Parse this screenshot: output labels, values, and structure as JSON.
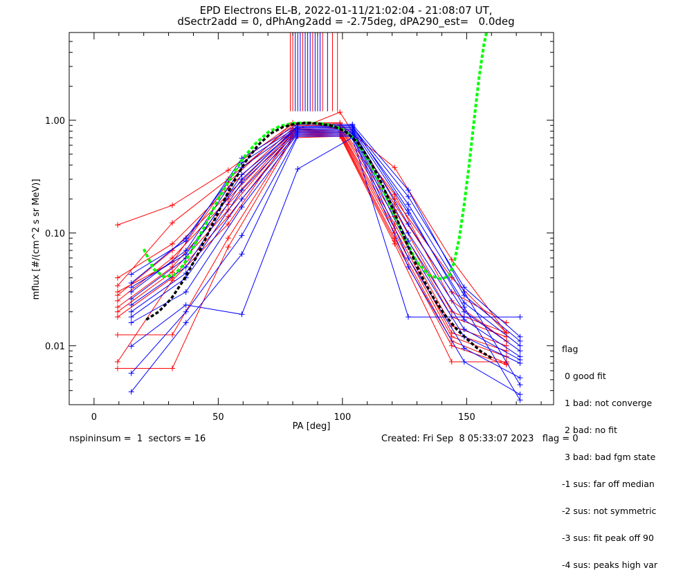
{
  "chart_data": {
    "type": "line",
    "title": "EPD Electrons EL-B, 2022-01-11/21:02:04 - 21:08:07 UT,",
    "subtitle": "dSectr2add = 0, dPhAng2add = -2.75deg, dPA290_est=   0.0deg",
    "xlabel": "PA [deg]",
    "ylabel": "mflux [#/(cm^2 s sr MeV)]",
    "xlim": [
      -10,
      185
    ],
    "ylim": [
      0.003,
      6.0
    ],
    "yscale": "log",
    "x_ticks": [
      0,
      50,
      100,
      150
    ],
    "x_tick_labels": [
      "0",
      "50",
      "100",
      "150"
    ],
    "y_ticks": [
      0.01,
      0.1,
      1.0
    ],
    "y_tick_labels": [
      "0.01",
      "0.10",
      "1.00"
    ],
    "grid": false,
    "colors": {
      "red": "#ff0000",
      "blue": "#0000ff",
      "green_fit": "#00ff00",
      "black_fit": "#000000"
    },
    "series": [
      {
        "color": "red",
        "x": [
          9.5,
          31.5,
          54.0,
          80.0,
          99.0,
          121.0,
          144.0,
          166.0
        ],
        "y": [
          0.118,
          0.176,
          0.36,
          0.93,
          0.93,
          0.38,
          0.058,
          0.013
        ]
      },
      {
        "color": "red",
        "x": [
          9.5,
          31.5,
          54.0,
          80.0,
          99.0,
          121.0,
          144.0,
          166.0
        ],
        "y": [
          0.034,
          0.123,
          0.3,
          0.9,
          0.9,
          0.18,
          0.03,
          0.016
        ]
      },
      {
        "color": "red",
        "x": [
          9.5,
          31.5,
          54.0,
          80.0,
          99.0,
          121.0,
          144.0,
          166.0
        ],
        "y": [
          0.04,
          0.08,
          0.25,
          0.85,
          0.87,
          0.16,
          0.02,
          0.013
        ]
      },
      {
        "color": "red",
        "x": [
          9.5,
          31.5,
          54.0,
          80.0,
          99.0,
          121.0,
          144.0,
          166.0
        ],
        "y": [
          0.028,
          0.07,
          0.22,
          0.82,
          0.85,
          0.14,
          0.018,
          0.012
        ]
      },
      {
        "color": "red",
        "x": [
          9.5,
          31.5,
          54.0,
          80.0,
          99.0,
          121.0,
          144.0,
          166.0
        ],
        "y": [
          0.025,
          0.06,
          0.2,
          0.8,
          0.82,
          0.12,
          0.015,
          0.01
        ]
      },
      {
        "color": "red",
        "x": [
          9.5,
          31.5,
          54.0,
          80.0,
          99.0,
          121.0,
          144.0,
          166.0
        ],
        "y": [
          0.022,
          0.05,
          0.18,
          0.78,
          0.8,
          0.11,
          0.013,
          0.009
        ]
      },
      {
        "color": "red",
        "x": [
          9.5,
          31.5,
          54.0,
          80.0,
          99.0,
          121.0,
          144.0,
          166.0
        ],
        "y": [
          0.02,
          0.045,
          0.16,
          0.76,
          0.78,
          0.1,
          0.012,
          0.008
        ]
      },
      {
        "color": "red",
        "x": [
          9.5,
          31.5,
          54.0,
          80.0,
          99.0,
          121.0,
          144.0,
          166.0
        ],
        "y": [
          0.018,
          0.04,
          0.14,
          0.74,
          0.76,
          0.09,
          0.011,
          0.007
        ]
      },
      {
        "color": "red",
        "x": [
          9.5,
          31.5,
          54.0,
          80.0,
          99.0,
          121.0,
          144.0,
          166.0
        ],
        "y": [
          0.0125,
          0.0125,
          0.09,
          0.72,
          0.74,
          0.085,
          0.01,
          0.0068
        ]
      },
      {
        "color": "red",
        "x": [
          9.5,
          31.5,
          54.0,
          80.0,
          99.0,
          121.0,
          144.0,
          166.0
        ],
        "y": [
          0.0063,
          0.0063,
          0.075,
          0.7,
          0.72,
          0.08,
          0.0072,
          0.0072
        ]
      },
      {
        "color": "red",
        "x": [
          9.5,
          31.5,
          54.0,
          80.0,
          99.0,
          121.0,
          144.0,
          166.0
        ],
        "y": [
          0.0072,
          0.038,
          0.12,
          0.8,
          1.18,
          0.2,
          0.04,
          0.013
        ]
      },
      {
        "color": "red",
        "x": [
          9.5,
          31.5,
          54.0,
          80.0,
          99.0,
          121.0,
          144.0,
          166.0
        ],
        "y": [
          0.03,
          0.055,
          0.28,
          0.95,
          0.95,
          0.22,
          0.025,
          0.011
        ]
      },
      {
        "color": "blue",
        "x": [
          15.0,
          37.0,
          59.5,
          82.0,
          104.0,
          126.5,
          149.0,
          171.5
        ],
        "y": [
          0.036,
          0.09,
          0.42,
          0.88,
          0.88,
          0.21,
          0.033,
          0.012
        ]
      },
      {
        "color": "blue",
        "x": [
          15.0,
          37.0,
          59.5,
          82.0,
          104.0,
          126.5,
          149.0,
          171.5
        ],
        "y": [
          0.03,
          0.07,
          0.38,
          0.86,
          0.86,
          0.18,
          0.028,
          0.011
        ]
      },
      {
        "color": "blue",
        "x": [
          15.0,
          37.0,
          59.5,
          82.0,
          104.0,
          126.5,
          149.0,
          171.5
        ],
        "y": [
          0.026,
          0.06,
          0.33,
          0.84,
          0.84,
          0.15,
          0.024,
          0.01
        ]
      },
      {
        "color": "blue",
        "x": [
          15.0,
          37.0,
          59.5,
          82.0,
          104.0,
          126.5,
          149.0,
          171.5
        ],
        "y": [
          0.023,
          0.05,
          0.28,
          0.82,
          0.82,
          0.12,
          0.02,
          0.009
        ]
      },
      {
        "color": "blue",
        "x": [
          15.0,
          37.0,
          59.5,
          82.0,
          104.0,
          126.5,
          149.0,
          171.5
        ],
        "y": [
          0.02,
          0.044,
          0.24,
          0.8,
          0.8,
          0.1,
          0.017,
          0.008
        ]
      },
      {
        "color": "blue",
        "x": [
          15.0,
          37.0,
          59.5,
          82.0,
          104.0,
          126.5,
          149.0,
          171.5
        ],
        "y": [
          0.018,
          0.04,
          0.2,
          0.78,
          0.78,
          0.085,
          0.014,
          0.0075
        ]
      },
      {
        "color": "blue",
        "x": [
          15.0,
          37.0,
          59.5,
          82.0,
          104.0,
          126.5,
          149.0,
          171.5
        ],
        "y": [
          0.016,
          0.03,
          0.17,
          0.76,
          0.76,
          0.075,
          0.012,
          0.007
        ]
      },
      {
        "color": "blue",
        "x": [
          15.0,
          37.0,
          59.5,
          82.0,
          104.0,
          126.5,
          149.0,
          171.5
        ],
        "y": [
          0.0057,
          0.02,
          0.095,
          0.74,
          0.74,
          0.06,
          0.0095,
          0.0052
        ]
      },
      {
        "color": "blue",
        "x": [
          15.0,
          37.0,
          59.5,
          82.0,
          104.0,
          126.5,
          149.0,
          171.5
        ],
        "y": [
          0.0039,
          0.016,
          0.065,
          0.72,
          0.72,
          0.05,
          0.0072,
          0.0037
        ]
      },
      {
        "color": "blue",
        "x": [
          15.0,
          37.0,
          59.5,
          82.0,
          104.0,
          126.5,
          149.0,
          171.5
        ],
        "y": [
          0.0099,
          0.023,
          0.019,
          0.37,
          0.7,
          0.018,
          0.018,
          0.018
        ]
      },
      {
        "color": "blue",
        "x": [
          15.0,
          37.0,
          59.5,
          82.0,
          104.0,
          126.5,
          149.0,
          171.5
        ],
        "y": [
          0.043,
          0.085,
          0.46,
          0.92,
          0.92,
          0.24,
          0.03,
          0.0045
        ]
      },
      {
        "color": "blue",
        "x": [
          15.0,
          37.0,
          59.5,
          82.0,
          104.0,
          126.5,
          149.0,
          171.5
        ],
        "y": [
          0.033,
          0.065,
          0.3,
          0.88,
          0.9,
          0.16,
          0.022,
          0.0033
        ]
      }
    ],
    "fit_green": {
      "x": [
        20,
        24,
        28,
        32,
        36,
        40,
        45,
        50,
        55,
        60,
        65,
        70,
        75,
        80,
        85,
        90,
        95,
        100,
        105,
        110,
        115,
        120,
        125,
        130,
        135,
        140,
        143,
        145,
        147,
        149,
        151,
        153,
        155,
        157,
        158
      ],
      "y": [
        0.072,
        0.048,
        0.041,
        0.042,
        0.052,
        0.075,
        0.12,
        0.2,
        0.31,
        0.46,
        0.62,
        0.78,
        0.89,
        0.94,
        0.95,
        0.94,
        0.91,
        0.83,
        0.68,
        0.46,
        0.28,
        0.16,
        0.09,
        0.055,
        0.042,
        0.039,
        0.042,
        0.055,
        0.09,
        0.18,
        0.4,
        1.0,
        2.4,
        4.8,
        6.0
      ]
    },
    "fit_black": {
      "x": [
        21,
        26,
        31,
        36,
        41,
        46,
        51,
        56,
        61,
        66,
        71,
        76,
        81,
        86,
        91,
        96,
        101,
        106,
        111,
        116,
        121,
        126,
        131,
        136,
        141,
        146,
        151,
        156,
        160
      ],
      "y": [
        0.017,
        0.02,
        0.026,
        0.038,
        0.06,
        0.1,
        0.17,
        0.28,
        0.43,
        0.6,
        0.76,
        0.87,
        0.93,
        0.95,
        0.93,
        0.89,
        0.8,
        0.64,
        0.44,
        0.27,
        0.15,
        0.08,
        0.045,
        0.028,
        0.019,
        0.014,
        0.011,
        0.0088,
        0.0078
      ]
    },
    "spikes": {
      "x": [
        79,
        80,
        81,
        82,
        83,
        84,
        85,
        86,
        87,
        88,
        89,
        90,
        91,
        92,
        94,
        96,
        98
      ],
      "colors": [
        "red",
        "red",
        "blue",
        "blue",
        "blue",
        "red",
        "blue",
        "blue",
        "blue",
        "red",
        "blue",
        "blue",
        "blue",
        "red",
        "blue",
        "red",
        "red"
      ],
      "y_from": 1.2,
      "y_to": 6.0
    }
  },
  "legend": {
    "title": "flag",
    "entries": [
      " 0 good fit",
      " 1 bad: not converge",
      " 2 bad: no fit",
      " 3 bad: bad fgm state",
      "-1 sus: far off median",
      "-2 sus: not symmetric",
      "-3 sus: fit peak off 90",
      "-4 sus: peaks high var"
    ]
  },
  "footer": {
    "left": "nspininsum =  1  sectors = 16",
    "right": "Created: Fri Sep  8 05:33:07 2023   flag = 0"
  }
}
